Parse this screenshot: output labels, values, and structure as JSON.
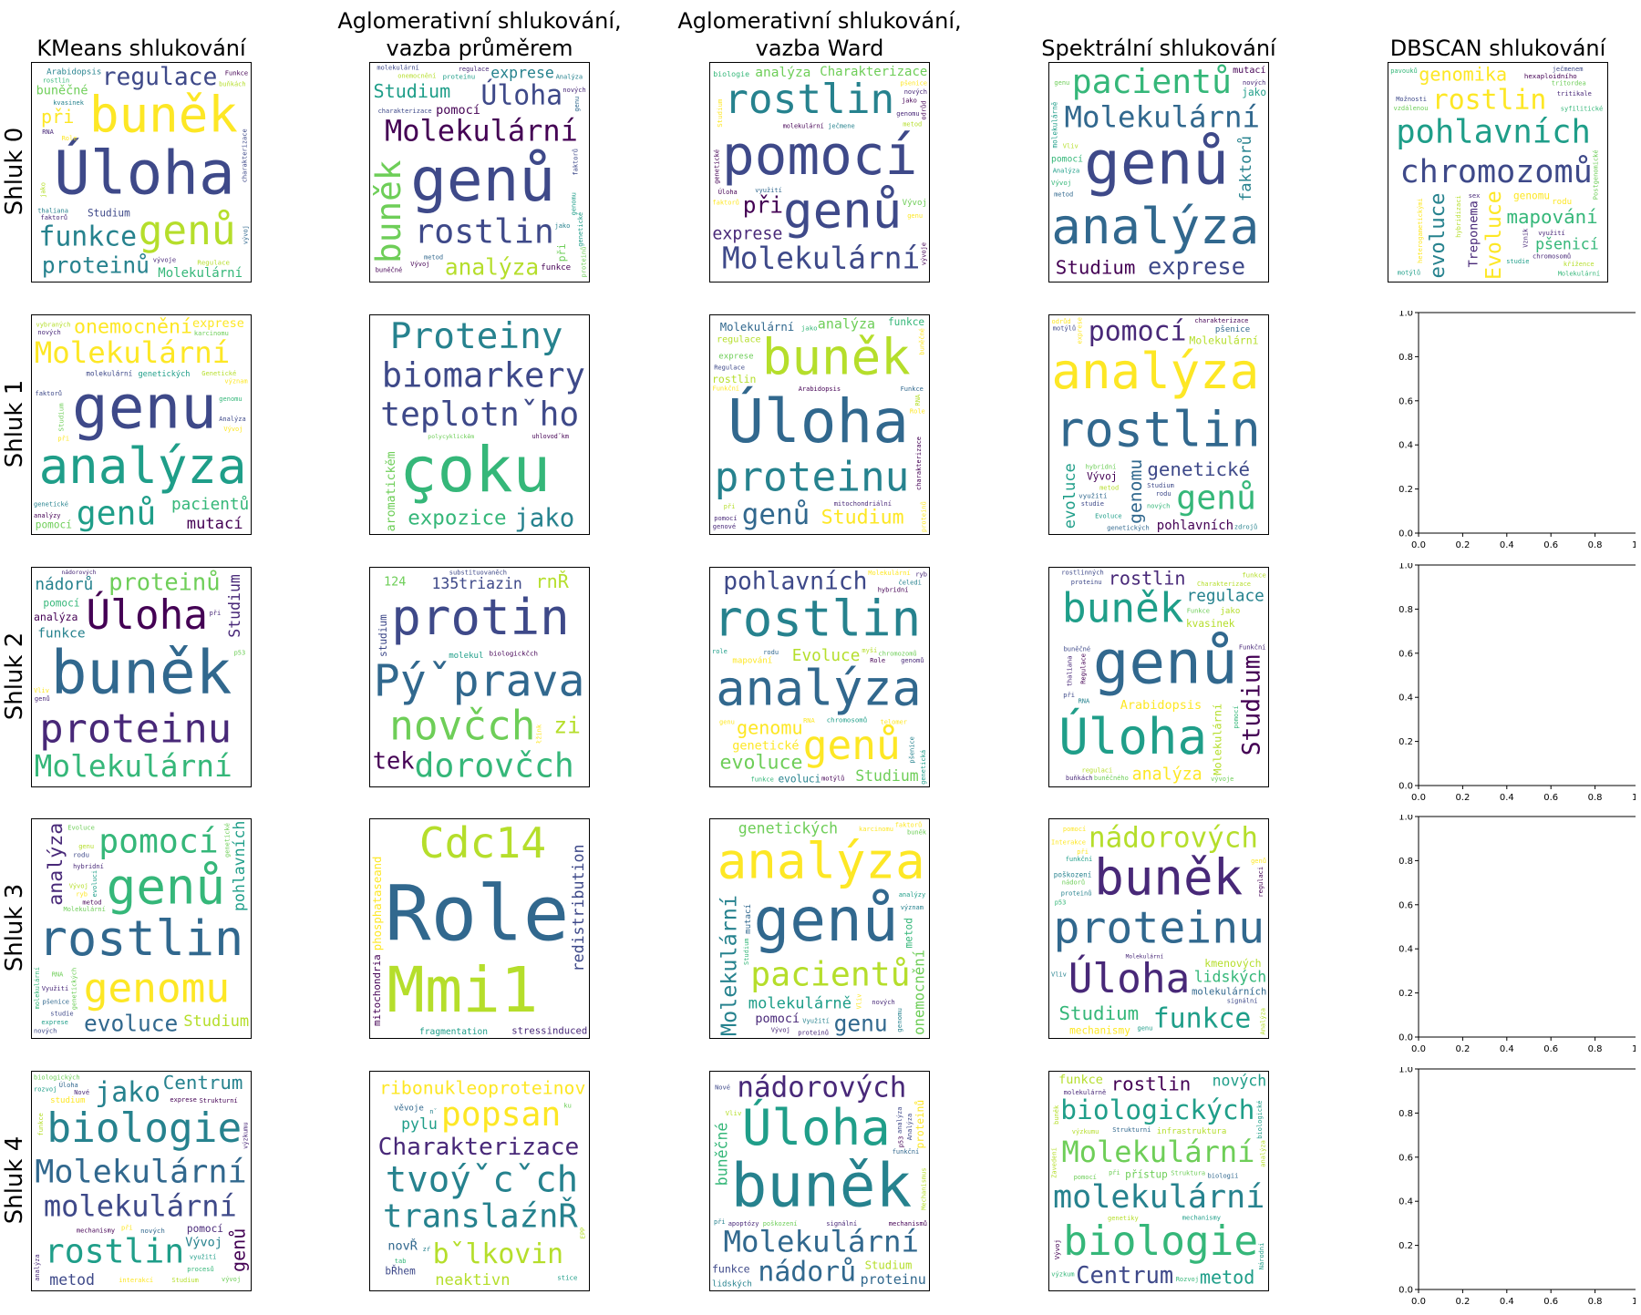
{
  "chart_data": {
    "type": "wordcloud-grid",
    "columns": [
      "KMeans shlukování",
      "Aglomerativní shlukování,\nvazba průměrem",
      "Aglomerativní shlukování,\nvazba Ward",
      "Spektrální shlukování",
      "DBSCAN shlukování"
    ],
    "rows": [
      "Shluk 0",
      "Shluk 1",
      "Shluk 2",
      "Shluk 3",
      "Shluk 4"
    ],
    "palette": [
      "#440154",
      "#482878",
      "#3e4989",
      "#31688e",
      "#26828e",
      "#1f9e89",
      "#35b779",
      "#6ece58",
      "#b5de2b",
      "#fde725"
    ],
    "empty_axes": {
      "xticks": [
        "0.0",
        "0.2",
        "0.4",
        "0.6",
        "0.8",
        "1.0"
      ],
      "yticks": [
        "0.0",
        "0.2",
        "0.4",
        "0.6",
        "0.8",
        "1.0"
      ],
      "xlim": [
        0,
        1
      ],
      "ylim": [
        0,
        1
      ]
    },
    "clouds": [
      [
        [
          "Úloha",
          "buněk",
          "genů",
          "regulace",
          "funkce",
          "proteinů",
          "při",
          "Molekulární",
          "buněčné",
          "Studium",
          "Arabidopsis",
          "Regulace",
          "Role",
          "vývoje",
          "rostlin",
          "faktorů",
          "Funkce",
          "RNA",
          "kvasinek",
          "thaliana",
          "komplexu",
          "buňkách",
          "analýza",
          "jako",
          "vývoj",
          "charakterizace",
          "regulaci",
          "Funkční"
        ],
        [
          "genů",
          "Molekulární",
          "buněk",
          "rostlin",
          "Úloha",
          "analýza",
          "Studium",
          "exprese",
          "pomocí",
          "při",
          "funkce",
          "proteinu",
          "nových",
          "proteinů",
          "jako",
          "buněčné",
          "genu",
          "metod",
          "regulace",
          "molekulární",
          "faktorů",
          "genomu",
          "genetické",
          "charakterizace",
          "onemocnění",
          "Analýza",
          "Vývoj"
        ],
        [
          "pomocí",
          "genů",
          "rostlin",
          "Molekulární",
          "exprese",
          "při",
          "analýza",
          "Charakterizace",
          "biologie",
          "molekulární",
          "Vývoj",
          "Studium",
          "jako",
          "ječmene",
          "metod",
          "Úloha",
          "využití",
          "nových",
          "faktorů",
          "pšenice",
          "genomu",
          "genetické",
          "genu",
          "šlechtění",
          "studium",
          "vývoje",
          "odrůd"
        ],
        [
          "genů",
          "analýza",
          "Molekulární",
          "pacientů",
          "exprese",
          "Studium",
          "faktorů",
          "mutací",
          "pomocí",
          "jako",
          "molekulárně",
          "Vývoj",
          "onemocnění",
          "genetické",
          "genetických",
          "Analýza",
          "nových",
          "Vliv",
          "poruch",
          "identifikace",
          "význam",
          "analýzy",
          "genu",
          "metod"
        ],
        [
          "chromozomů",
          "pohlavních",
          "Evoluce",
          "evoluce",
          "rostlin",
          "mapování",
          "genomika",
          "pšenicí",
          "Treponema",
          "genomu",
          "rodu",
          "hexaploidního",
          "sex",
          "Postgenomické",
          "křížence",
          "syfilitické",
          "využití",
          "ječmenem",
          "tritikale",
          "chromosomů",
          "Molekulární",
          "Možnosti",
          "heterogametickými",
          "tritordea",
          "motýlů",
          "hybridizaci",
          "Vznik",
          "pavouků",
          "studie",
          "vzdálenou"
        ]
      ],
      [
        [
          "genu",
          "analýza",
          "Molekulární",
          "genů",
          "onemocnění",
          "pacientů",
          "mutací",
          "genetických",
          "exprese",
          "pomocí",
          "molekulární",
          "Studium",
          "genetické",
          "Genetické",
          "karcinomu",
          "vybraných",
          "faktorů",
          "Vývoj",
          "Analýza",
          "při",
          "charakterizace",
          "genomu",
          "nových",
          "analýzy",
          "molekulárně",
          "identifikace",
          "význam"
        ],
        [
          "teplotnˇho",
          "çoku",
          "biomarkery",
          "Proteiny",
          "jako",
          "expozice",
          "aromatickěm",
          "uhlovodˇkm",
          "polycyklickěm"
        ],
        [
          "Úloha",
          "buněk",
          "proteinu",
          "genů",
          "Studium",
          "analýza",
          "Molekulární",
          "regulace",
          "rostlin",
          "funkce",
          "exprese",
          "jako",
          "pomocí",
          "Arabidopsis",
          "mitochondriální",
          "Regulace",
          "RNA",
          "Role",
          "proteinů",
          "Funkce",
          "při",
          "buněčné",
          "buněčného",
          "Funkční",
          "identifikace",
          "genové",
          "charakterizace",
          "thaliana"
        ],
        [
          "rostlin",
          "analýza",
          "genomu",
          "genů",
          "pomocí",
          "genetické",
          "evoluce",
          "pohlavních",
          "Molekulární",
          "Vývoj",
          "pšenice",
          "využití",
          "Evoluce",
          "metod",
          "charakterizace",
          "rodu",
          "nových",
          "Studium",
          "hybridní",
          "studie",
          "rostlinných",
          "exprese",
          "odrůd",
          "zdrojů",
          "Charakterizace",
          "genetických",
          "motýlů"
        ],
        null
      ],
      [
        [
          "buněk",
          "proteinu",
          "Úloha",
          "Molekulární",
          "proteinů",
          "nádorů",
          "funkce",
          "Studium",
          "analýza",
          "pomocí",
          "buněčné",
          "nádorových",
          "Vliv",
          "lidských",
          "mechanismy",
          "p53",
          "Interakce",
          "exprese",
          "funkční",
          "při",
          "genů",
          "poškození",
          "identifikace",
          "molekulární",
          "diferenciaci",
          "interakce",
          "Analýza",
          "genomové",
          "studie"
        ],
        [
          "Pýˇprava",
          "protin",
          "novčch",
          "dorovčch",
          "tek",
          "zi",
          "rnŘ",
          "135triazin",
          "124",
          "studium",
          "molekul",
          "biologickčch",
          "substituovaněch",
          "łžink"
        ],
        [
          "analýza",
          "rostlin",
          "genů",
          "pohlavních",
          "evoluce",
          "Evoluce",
          "genomu",
          "Studium",
          "genetické",
          "evoluci",
          "mapování",
          "chromosomů",
          "chromozomů",
          "Molekulární",
          "pšenice",
          "RNA",
          "rodu",
          "hybridní",
          "ryb",
          "rostlinných",
          "motýlů",
          "funkce",
          "telomer",
          "role",
          "genu",
          "čeledi",
          "Role",
          "genetická",
          "myší",
          "genomů"
        ],
        [
          "genů",
          "Úloha",
          "buněk",
          "Studium",
          "analýza",
          "regulace",
          "rostlin",
          "Molekulární",
          "Arabidopsis",
          "kvasinek",
          "jako",
          "funkce",
          "buněčné",
          "Charakterizace",
          "RNA",
          "thaliana",
          "proteinu",
          "regulaci",
          "Regulace",
          "při",
          "pomocí",
          "vývoje",
          "Funkce",
          "buněčného",
          "rostlinných",
          "buňkách",
          "Funkční"
        ],
        null
      ],
      [
        [
          "rostlin",
          "genů",
          "genomu",
          "pomocí",
          "analýza",
          "evoluce",
          "Studium",
          "pohlavních",
          "Molekulární",
          "charakterizace",
          "Charakterizace",
          "rodu",
          "pšenice",
          "evoluci",
          "Evoluce",
          "genetické",
          "hybridní",
          "exprese",
          "metod",
          "nových",
          "molekulární",
          "ryb",
          "Vývoj",
          "RNA",
          "studie",
          "Využití",
          "genu",
          "genetických",
          "rostlinných"
        ],
        [
          "Role",
          "Mmi1",
          "redistribution",
          "Cdc14",
          "phosphataseand",
          "stressinduced",
          "fragmentation",
          "mitochondria"
        ],
        [
          "genů",
          "analýza",
          "Molekulární",
          "pacientů",
          "onemocnění",
          "genu",
          "molekulárně",
          "genetických",
          "pomocí",
          "metod",
          "mutací",
          "genomu",
          "Vývoj",
          "karcinomu",
          "proteinů",
          "nových",
          "exprese",
          "Genetická",
          "Využití",
          "význam",
          "faktorů",
          "vybraných",
          "genetické",
          "studium",
          "Studium",
          "Vliv",
          "analýzy",
          "buněk",
          "onemocnění"
        ],
        [
          "proteinu",
          "buněk",
          "Úloha",
          "nádorových",
          "funkce",
          "Studium",
          "molekulárních",
          "lidských",
          "kmenových",
          "mechanismy",
          "poškození",
          "Molekulární",
          "proteinů",
          "pomocí",
          "při",
          "nádorů",
          "Interakce",
          "regulaci",
          "funkční",
          "onemocnění",
          "signální",
          "Vliv",
          "apoptózy",
          "p53",
          "Analýza",
          "genů",
          "genu",
          "buňkách",
          "analýza"
        ],
        null
      ],
      [
        [
          "Molekulární",
          "molekulární",
          "biologie",
          "rostlin",
          "jako",
          "Centrum",
          "genů",
          "metod",
          "Vývoj",
          "pomocí",
          "studium",
          "nových",
          "analýza",
          "při",
          "mechanismy",
          "exprese",
          "Studium",
          "využití",
          "biologických",
          "funkce",
          "Úloha",
          "Strukturní",
          "interakcí",
          "rozvoj",
          "vývoj",
          "výzkumu",
          "Nové",
          "procesů",
          "buněčného"
        ],
        [
          "tvoýˇcˇch",
          "translaźnŘ",
          "Charakterizace",
          "popsan",
          "bˇlkovin",
          "ribonukleoproteinov",
          "neaktivn",
          "pylu",
          "novŘ",
          "bŘhem",
          "věvoje",
          "stice",
          "EPP",
          "tab",
          "ku",
          "nˇ",
          "zŕ"
        ],
        [
          "buněk",
          "Úloha",
          "Molekulární",
          "nádorových",
          "nádorů",
          "proteinu",
          "Studium",
          "buněčné",
          "funkce",
          "proteinů",
          "lidských",
          "Vliv",
          "p53",
          "při",
          "signální",
          "apoptózy",
          "poškození",
          "mechanismy",
          "mechanismů",
          "Analýza",
          "nových",
          "diferenciaci",
          "Interakce",
          "funkční",
          "buňkách",
          "analýza",
          "interakce",
          "Mechanismus",
          "buněčného",
          "Nové"
        ],
        [
          "molekulární",
          "Molekulární",
          "biologie",
          "biologických",
          "Centrum",
          "rostlin",
          "metod",
          "nových",
          "funkce",
          "přístup",
          "infrastruktura",
          "Vývoj",
          "genetiky",
          "Strukturní",
          "výzkumu",
          "biologii",
          "při",
          "identifikaci",
          "mechanismy",
          "biologické",
          "experimentální",
          "Národní",
          "Rozvoj",
          "Zavedení",
          "buněk",
          "molekulárně",
          "Struktura",
          "analýza",
          "pomocí",
          "výzkum"
        ],
        null
      ]
    ]
  }
}
